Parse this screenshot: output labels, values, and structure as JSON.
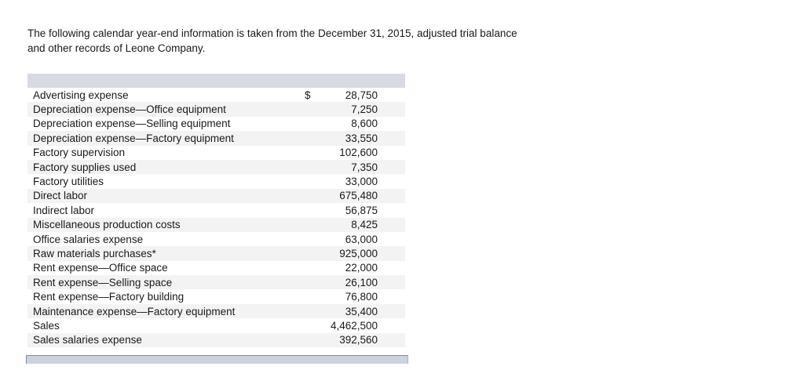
{
  "intro": {
    "line1": "The following calendar year-end information is taken from the December 31, 2015, adjusted trial balance",
    "line2": "and other records of Leone Company."
  },
  "table": {
    "rows": [
      {
        "label": "Advertising expense",
        "currency": "$",
        "amount": "28,750"
      },
      {
        "label": "Depreciation expense—Office equipment",
        "currency": "",
        "amount": "7,250"
      },
      {
        "label": "Depreciation expense—Selling equipment",
        "currency": "",
        "amount": "8,600"
      },
      {
        "label": "Depreciation expense—Factory equipment",
        "currency": "",
        "amount": "33,550"
      },
      {
        "label": "Factory supervision",
        "currency": "",
        "amount": "102,600"
      },
      {
        "label": "Factory supplies used",
        "currency": "",
        "amount": "7,350"
      },
      {
        "label": "Factory utilities",
        "currency": "",
        "amount": "33,000"
      },
      {
        "label": "Direct labor",
        "currency": "",
        "amount": "675,480"
      },
      {
        "label": "Indirect labor",
        "currency": "",
        "amount": "56,875"
      },
      {
        "label": "Miscellaneous production costs",
        "currency": "",
        "amount": "8,425"
      },
      {
        "label": "Office salaries expense",
        "currency": "",
        "amount": "63,000"
      },
      {
        "label": "Raw materials purchases*",
        "currency": "",
        "amount": "925,000"
      },
      {
        "label": "Rent expense—Office space",
        "currency": "",
        "amount": "22,000"
      },
      {
        "label": "Rent expense—Selling space",
        "currency": "",
        "amount": "26,100"
      },
      {
        "label": "Rent expense—Factory building",
        "currency": "",
        "amount": "76,800"
      },
      {
        "label": "Maintenance expense—Factory equipment",
        "currency": "",
        "amount": "35,400"
      },
      {
        "label": "Sales",
        "currency": "",
        "amount": "4,462,500"
      },
      {
        "label": "Sales salaries expense",
        "currency": "",
        "amount": "392,560"
      }
    ]
  },
  "colors": {
    "header_bar": "#d6dae3",
    "row_stripe": "#f3f3f3",
    "footer_bar_fill": "#ccd3df",
    "footer_bar_border": "#818b9d",
    "text": "#1a1a1a"
  }
}
